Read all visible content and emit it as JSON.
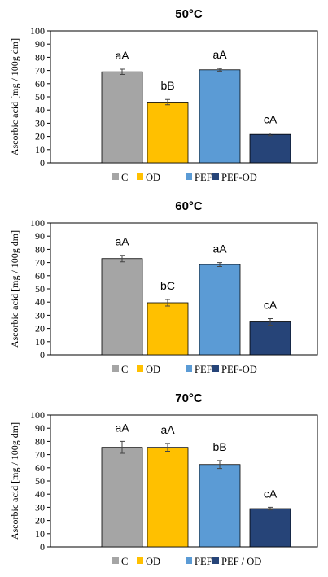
{
  "chart_data": [
    {
      "type": "bar",
      "title": "50°C",
      "ylabel": "Ascorbic acid [mg / 100g dm]",
      "ylim": [
        0,
        100
      ],
      "yticks": [
        0,
        10,
        20,
        30,
        40,
        50,
        60,
        70,
        80,
        90,
        100
      ],
      "grid": false,
      "legend_position": "bottom",
      "series": [
        {
          "name": "C",
          "value": 69,
          "error": 2,
          "label": "aA",
          "color": "#a5a5a5"
        },
        {
          "name": "OD",
          "value": 46,
          "error": 2,
          "label": "bB",
          "color": "#ffc000"
        },
        {
          "name": "PEF",
          "value": 70.5,
          "error": 1,
          "label": "aA",
          "color": "#5b9bd5"
        },
        {
          "name": "PEF-OD",
          "value": 21.5,
          "error": 1,
          "label": "cA",
          "color": "#264478"
        }
      ]
    },
    {
      "type": "bar",
      "title": "60°C",
      "ylabel": "Ascorbic acid [mg / 100g dm]",
      "ylim": [
        0,
        100
      ],
      "yticks": [
        0,
        10,
        20,
        30,
        40,
        50,
        60,
        70,
        80,
        90,
        100
      ],
      "grid": false,
      "legend_position": "bottom",
      "series": [
        {
          "name": "C",
          "value": 73,
          "error": 2.5,
          "label": "aA",
          "color": "#a5a5a5"
        },
        {
          "name": "OD",
          "value": 39.5,
          "error": 2.5,
          "label": "bC",
          "color": "#ffc000"
        },
        {
          "name": "PEF",
          "value": 68.5,
          "error": 1.5,
          "label": "aA",
          "color": "#5b9bd5"
        },
        {
          "name": "PEF-OD",
          "value": 25,
          "error": 2.5,
          "label": "cA",
          "color": "#264478"
        }
      ]
    },
    {
      "type": "bar",
      "title": "70°C",
      "ylabel": "Ascorbic acid [mg / 100g dm]",
      "ylim": [
        0,
        100
      ],
      "yticks": [
        0,
        10,
        20,
        30,
        40,
        50,
        60,
        70,
        80,
        90,
        100
      ],
      "grid": false,
      "legend_position": "bottom",
      "series": [
        {
          "name": "C",
          "value": 75.5,
          "error": 4.5,
          "label": "aA",
          "color": "#a5a5a5"
        },
        {
          "name": "OD",
          "value": 75.5,
          "error": 3,
          "label": "aA",
          "color": "#ffc000"
        },
        {
          "name": "PEF",
          "value": 62.5,
          "error": 3,
          "label": "bB",
          "color": "#5b9bd5"
        },
        {
          "name": "PEF / OD",
          "value": 29,
          "error": 1,
          "label": "cA",
          "color": "#264478"
        }
      ]
    }
  ]
}
